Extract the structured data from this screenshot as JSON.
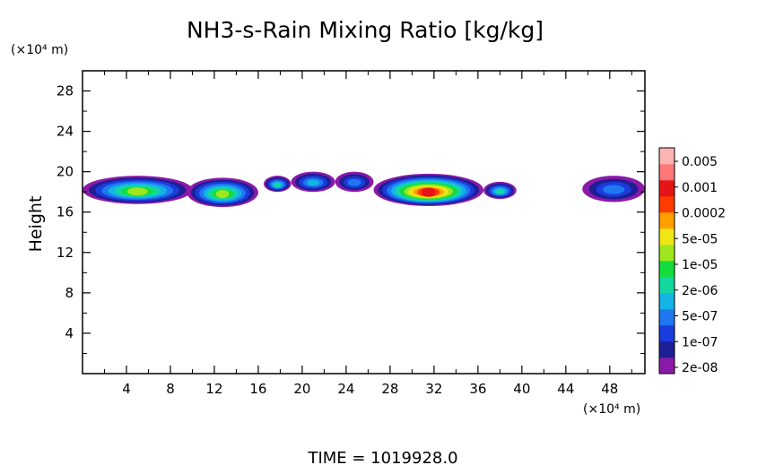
{
  "chart_data": {
    "type": "heatmap",
    "title": "NH3-s-Rain Mixing Ratio [kg/kg]",
    "ylabel": "Height",
    "x_unit": "(×10⁴ m)",
    "y_unit": "(×10⁴ m)",
    "xlim": [
      0,
      51.2
    ],
    "ylim": [
      0,
      30
    ],
    "x_ticks": [
      "4",
      "8",
      "12",
      "16",
      "20",
      "24",
      "28",
      "32",
      "36",
      "40",
      "44",
      "48"
    ],
    "y_ticks": [
      "4",
      "8",
      "12",
      "16",
      "20",
      "24",
      "28"
    ],
    "time_label": "TIME = 1019928.0",
    "colorbar": {
      "labels": [
        "0.005",
        "0.001",
        "0.0002",
        "5e-05",
        "1e-05",
        "2e-06",
        "5e-07",
        "1e-07",
        "2e-08"
      ],
      "colors": [
        "#8a1aa8",
        "#1e1e96",
        "#1a3cdc",
        "#1e78f0",
        "#14b4e6",
        "#14d7a0",
        "#14dc3c",
        "#a0e61e",
        "#f0e614",
        "#ffa000",
        "#ff3c00",
        "#e61414",
        "#ff7878",
        "#ffb4b4"
      ]
    },
    "regions": [
      {
        "x0": 0.0,
        "x1": 10.0,
        "y0": 16.8,
        "y1": 19.6,
        "max_level": 7
      },
      {
        "x0": 9.5,
        "x1": 16.0,
        "y0": 16.5,
        "y1": 19.4,
        "max_level": 7
      },
      {
        "x0": 16.5,
        "x1": 19.0,
        "y0": 18.0,
        "y1": 19.6,
        "max_level": 5
      },
      {
        "x0": 19.0,
        "x1": 23.0,
        "y0": 18.0,
        "y1": 20.0,
        "max_level": 4
      },
      {
        "x0": 23.0,
        "x1": 26.5,
        "y0": 18.0,
        "y1": 20.0,
        "max_level": 3
      },
      {
        "x0": 26.5,
        "x1": 36.5,
        "y0": 16.6,
        "y1": 19.8,
        "max_level": 11
      },
      {
        "x0": 36.5,
        "x1": 39.5,
        "y0": 17.3,
        "y1": 19.0,
        "max_level": 5
      },
      {
        "x0": 45.5,
        "x1": 51.2,
        "y0": 17.0,
        "y1": 19.6,
        "max_level": 3
      }
    ]
  }
}
